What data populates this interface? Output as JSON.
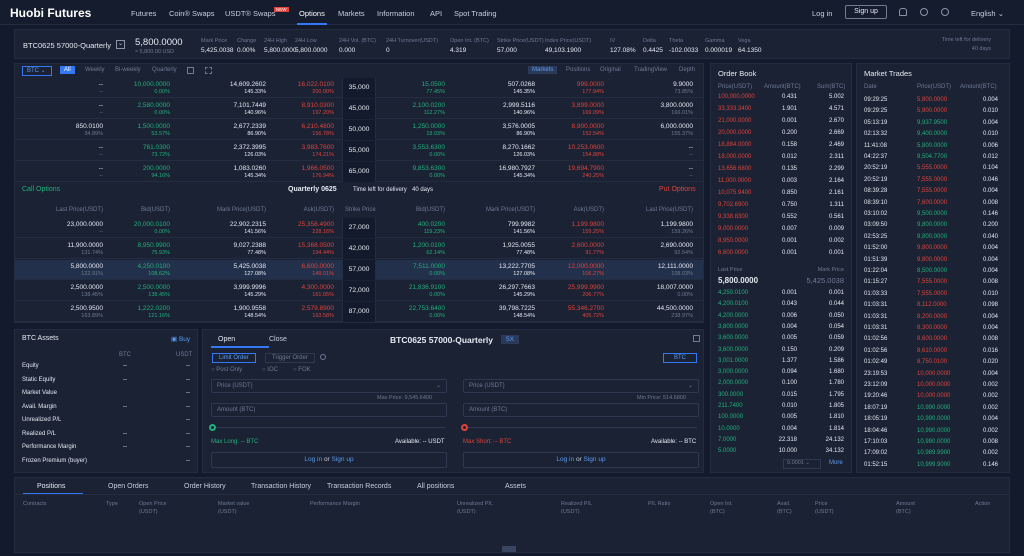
{
  "nav": {
    "logo": "Huobi Futures",
    "items": [
      "Futures",
      "Coin® Swaps",
      "USDT® Swaps",
      "Options",
      "Markets",
      "Information",
      "API",
      "Spot Trading"
    ],
    "badge": "NEW",
    "login": "Log in",
    "signup": "Sign up",
    "language": "English"
  },
  "ticker": {
    "symbol": "BTC0625 57000-Quarterly",
    "price": "5,800.0000",
    "price_usd": "≈ 5,800.00 USD",
    "stats": [
      {
        "l": "Mark Price",
        "v": "5,425.0038"
      },
      {
        "l": "Change",
        "v": "0.00%"
      },
      {
        "l": "24H High",
        "v": "5,800.0000"
      },
      {
        "l": "24H Low",
        "v": "5,800.0000"
      },
      {
        "l": "24H Vol. (BTC)",
        "v": "0.000"
      },
      {
        "l": "24H Turnover(USDT)",
        "v": "0"
      },
      {
        "l": "Open Int. (BTC)",
        "v": "4.319"
      },
      {
        "l": "Strike Price(USDT)",
        "v": "57,000"
      },
      {
        "l": "Index Price(USDT)",
        "v": "49,103.1900"
      },
      {
        "l": "IV",
        "v": "127.08%"
      },
      {
        "l": "Delta",
        "v": "0.4425"
      },
      {
        "l": "Theta",
        "v": "-102.0033"
      },
      {
        "l": "Gamma",
        "v": "0.000019"
      },
      {
        "l": "Vega",
        "v": "64.1350"
      }
    ],
    "time_left_label": "Time left for delivery",
    "time_left": "40 days"
  },
  "chain": {
    "coin": "BTC",
    "filters": [
      "All",
      "Weekly",
      "Bi-weekly",
      "Quarterly"
    ],
    "views": [
      "Markets",
      "Positions",
      "Original",
      "TradingView",
      "Depth"
    ],
    "call_label": "Call Options",
    "put_label": "Put Options",
    "expiry_title": "Quarterly 0625",
    "time_left_label": "Time left for delivery",
    "time_left": "40 days",
    "headers_call": [
      "Last Price(USDT)",
      "Bid(USDT)",
      "Mark Price(USDT)",
      "Ask(USDT)"
    ],
    "header_strike": "Strike Price",
    "headers_put": [
      "Bid(USDT)",
      "Mark Price(USDT)",
      "Ask(USDT)",
      "Last Price(USDT)"
    ],
    "top_rows": [
      {
        "strike": "35,000",
        "c": [
          [
            "--",
            "--"
          ],
          [
            "10,000.0000",
            "0.00%"
          ],
          [
            "14,609.2602",
            "145.33%"
          ],
          [
            "16,022.0100",
            "200.00%"
          ]
        ],
        "p": [
          [
            "15.0500",
            "77.45%"
          ],
          [
            "507.0268",
            "145.35%"
          ],
          [
            "999.0000",
            "177.94%"
          ],
          [
            "9.9000",
            "73.85%"
          ]
        ]
      },
      {
        "strike": "45,000",
        "c": [
          [
            "--",
            "--"
          ],
          [
            "2,580.0000",
            "0.00%"
          ],
          [
            "7,101.7449",
            "140.96%"
          ],
          [
            "8,910.0300",
            "197.20%"
          ]
        ],
        "p": [
          [
            "2,100.0200",
            "112.27%"
          ],
          [
            "2,999.5116",
            "140.96%"
          ],
          [
            "3,899.0000",
            "169.09%"
          ],
          [
            "3,800.0000",
            "166.01%"
          ]
        ]
      },
      {
        "strike": "50,000",
        "c": [
          [
            "850.0100",
            "34.89%"
          ],
          [
            "1,500.0000",
            "53.57%"
          ],
          [
            "2,677.2339",
            "86.90%"
          ],
          [
            "6,210.4800",
            "156.78%"
          ]
        ],
        "p": [
          [
            "1,250.0000",
            "19.03%"
          ],
          [
            "3,576.0005",
            "86.90%"
          ],
          [
            "8,900.0000",
            "152.54%"
          ],
          [
            "6,000.0000",
            "155.37%"
          ]
        ]
      },
      {
        "strike": "55,000",
        "c": [
          [
            "--",
            "--"
          ],
          [
            "761.0300",
            "73.72%"
          ],
          [
            "2,372.3995",
            "126.03%"
          ],
          [
            "3,983.7600",
            "174.21%"
          ]
        ],
        "p": [
          [
            "3,553.6300",
            "0.00%"
          ],
          [
            "8,270.1662",
            "126.03%"
          ],
          [
            "10,253.0600",
            "154.88%"
          ],
          [
            "--",
            "--"
          ]
        ]
      },
      {
        "strike": "65,000",
        "c": [
          [
            "--",
            "--"
          ],
          [
            "200.0000",
            "94.16%"
          ],
          [
            "1,083.0260",
            "145.34%"
          ],
          [
            "1,966.0500",
            "176.94%"
          ]
        ],
        "p": [
          [
            "9,853.6300",
            "0.00%"
          ],
          [
            "16,980.7927",
            "145.34%"
          ],
          [
            "19,694.7900",
            "240.25%"
          ],
          [
            "--",
            "--"
          ]
        ]
      }
    ],
    "rows": [
      {
        "strike": "27,000",
        "c": [
          [
            "23,000.0000",
            "--"
          ],
          [
            "20,000.0100",
            "0.00%"
          ],
          [
            "22,902.2315",
            "141.56%"
          ],
          [
            "25,358.4900",
            "228.16%"
          ]
        ],
        "p": [
          [
            "400.0200",
            "119.23%"
          ],
          [
            "799.9982",
            "141.56%"
          ],
          [
            "1,199.9800",
            "159.25%"
          ],
          [
            "1,199.9800",
            "159.26%"
          ]
        ]
      },
      {
        "strike": "42,000",
        "c": [
          [
            "11,900.0000",
            "131.74%"
          ],
          [
            "8,950.9900",
            "75.93%"
          ],
          [
            "9,027.2388",
            "77.48%"
          ],
          [
            "15,368.0500",
            "194.44%"
          ]
        ],
        "p": [
          [
            "1,200.0100",
            "62.14%"
          ],
          [
            "1,925.0055",
            "77.48%"
          ],
          [
            "2,600.0000",
            "91.77%"
          ],
          [
            "2,690.0000",
            "92.54%"
          ]
        ]
      },
      {
        "strike": "57,000",
        "c": [
          [
            "5,800.0000",
            "122.91%"
          ],
          [
            "4,250.0100",
            "108.62%"
          ],
          [
            "5,425.0038",
            "127.08%"
          ],
          [
            "6,600.0000",
            "149.01%"
          ]
        ],
        "p": [
          [
            "7,511.0000",
            "0.00%"
          ],
          [
            "13,222.7705",
            "127.08%"
          ],
          [
            "12,000.0000",
            "106.27%"
          ],
          [
            "12,111.0000",
            "108.03%"
          ]
        ]
      },
      {
        "strike": "72,000",
        "c": [
          [
            "2,500.0000",
            "138.45%"
          ],
          [
            "2,500.0000",
            "138.45%"
          ],
          [
            "3,999.9996",
            "145.29%"
          ],
          [
            "4,300.0000",
            "161.05%"
          ]
        ],
        "p": [
          [
            "21,836.9100",
            "0.00%"
          ],
          [
            "26,297.7663",
            "145.29%"
          ],
          [
            "25,999.9900",
            "206.77%"
          ],
          [
            "18,007.0000",
            "0.00%"
          ]
        ]
      },
      {
        "strike": "87,000",
        "c": [
          [
            "2,500.9500",
            "163.89%"
          ],
          [
            "1,222.0200",
            "121.16%"
          ],
          [
            "1,900.9558",
            "148.54%"
          ],
          [
            "2,579.8900",
            "163.58%"
          ]
        ],
        "p": [
          [
            "22,753.6400",
            "0.00%"
          ],
          [
            "39,798.7225",
            "148.54%"
          ],
          [
            "55,346.2700",
            "405.72%"
          ],
          [
            "44,500.0000",
            "238.97%"
          ]
        ]
      }
    ]
  },
  "orderbook": {
    "title": "Order Book",
    "headers": [
      "Price(USDT)",
      "Amount(BTC)",
      "Sum(BTC)"
    ],
    "asks": [
      [
        "100,000.0000",
        "0.431",
        "5.002"
      ],
      [
        "33,333.3400",
        "1.901",
        "4.571"
      ],
      [
        "21,000.0000",
        "0.001",
        "2.670"
      ],
      [
        "20,000.0000",
        "0.200",
        "2.669"
      ],
      [
        "18,884.0000",
        "0.158",
        "2.469"
      ],
      [
        "18,000.0000",
        "0.012",
        "2.311"
      ],
      [
        "13,656.6800",
        "0.135",
        "2.299"
      ],
      [
        "11,000.0000",
        "0.003",
        "2.164"
      ],
      [
        "10,075.9400",
        "0.850",
        "2.161"
      ],
      [
        "9,702.6900",
        "0.750",
        "1.311"
      ],
      [
        "9,338.8300",
        "0.552",
        "0.561"
      ],
      [
        "9,000.0000",
        "0.007",
        "0.009"
      ],
      [
        "8,950.0000",
        "0.001",
        "0.002"
      ],
      [
        "6,600.0000",
        "0.001",
        "0.001"
      ]
    ],
    "last_label": "Last Price",
    "last": "5,800.0000",
    "mark_label": "Mark Price",
    "mark": "5,425.0038",
    "bids": [
      [
        "4,250.0100",
        "0.001",
        "0.001"
      ],
      [
        "4,200.0100",
        "0.043",
        "0.044"
      ],
      [
        "4,200.0000",
        "0.006",
        "0.050"
      ],
      [
        "3,800.0000",
        "0.004",
        "0.054"
      ],
      [
        "3,600.0000",
        "0.005",
        "0.059"
      ],
      [
        "3,600.0000",
        "0.150",
        "0.209"
      ],
      [
        "3,001.0000",
        "1.377",
        "1.586"
      ],
      [
        "3,000.0000",
        "0.094",
        "1.680"
      ],
      [
        "2,000.0000",
        "0.100",
        "1.780"
      ],
      [
        "300.0000",
        "0.015",
        "1.795"
      ],
      [
        "211.7400",
        "0.010",
        "1.805"
      ],
      [
        "100.0000",
        "0.005",
        "1.810"
      ],
      [
        "10.0000",
        "0.004",
        "1.814"
      ],
      [
        "7.0000",
        "22.318",
        "24.132"
      ],
      [
        "5.0000",
        "10.000",
        "34.132"
      ]
    ],
    "precision": "0.0001",
    "more": "More"
  },
  "trades": {
    "title": "Market Trades",
    "headers": [
      "Date",
      "Price(USDT)",
      "Amount(BTC)"
    ],
    "rows": [
      [
        "09:29:25",
        "5,800.0000",
        "0.004"
      ],
      [
        "09:29:25",
        "5,900.0000",
        "0.010"
      ],
      [
        "05:13:19",
        "9,937.9500",
        "0.004"
      ],
      [
        "02:13:32",
        "9,400.0000",
        "0.010"
      ],
      [
        "11:41:08",
        "5,800.0000",
        "0.006"
      ],
      [
        "04:22:37",
        "9,504.7700",
        "0.012"
      ],
      [
        "20:52:19",
        "5,555.0000",
        "0.104"
      ],
      [
        "20:52:19",
        "7,555.0000",
        "0.046"
      ],
      [
        "08:39:28",
        "7,555.0000",
        "0.004"
      ],
      [
        "08:39:10",
        "7,600.0000",
        "0.008"
      ],
      [
        "03:10:02",
        "9,500.0000",
        "0.146"
      ],
      [
        "03:09:50",
        "9,800.0000",
        "0.200"
      ],
      [
        "02:53:25",
        "9,800.0000",
        "0.040"
      ],
      [
        "01:52:00",
        "9,800.0000",
        "0.004"
      ],
      [
        "01:51:39",
        "9,800.0000",
        "0.004"
      ],
      [
        "01:22:04",
        "8,500.0000",
        "0.004"
      ],
      [
        "01:15:27",
        "7,555.0000",
        "0.008"
      ],
      [
        "01:03:33",
        "7,555.0000",
        "0.010"
      ],
      [
        "01:03:31",
        "8,112.0000",
        "0.098"
      ],
      [
        "01:03:31",
        "8,200.0000",
        "0.004"
      ],
      [
        "01:03:31",
        "8,300.0000",
        "0.004"
      ],
      [
        "01:02:56",
        "8,600.0000",
        "0.008"
      ],
      [
        "01:02:56",
        "8,610.0000",
        "0.016"
      ],
      [
        "01:02:49",
        "8,750.0100",
        "0.020"
      ],
      [
        "23:19:53",
        "10,000.0000",
        "0.004"
      ],
      [
        "23:12:09",
        "10,000.0000",
        "0.002"
      ],
      [
        "19:20:46",
        "10,000.0000",
        "0.002"
      ],
      [
        "18:07:19",
        "10,990.0000",
        "0.002"
      ],
      [
        "18:05:19",
        "10,990.0000",
        "0.004"
      ],
      [
        "18:04:46",
        "10,990.0000",
        "0.002"
      ],
      [
        "17:10:03",
        "10,990.0000",
        "0.008"
      ],
      [
        "17:09:02",
        "10,989.9900",
        "0.002"
      ],
      [
        "01:52:15",
        "10,999.9000",
        "0.146"
      ]
    ]
  },
  "assets": {
    "title": "BTC Assets",
    "buy": "Buy",
    "col1": "BTC",
    "col2": "USDT",
    "rows": [
      [
        "Equity",
        "--",
        "--"
      ],
      [
        "Static Equity",
        "--",
        "--"
      ],
      [
        "Market Value",
        "",
        "--"
      ],
      [
        "Avail. Margin",
        "--",
        "--"
      ],
      [
        "Unrealized P/L",
        "",
        "--"
      ],
      [
        "Realized P/L",
        "--",
        "--"
      ],
      [
        "Performance Margin",
        "--",
        "--"
      ],
      [
        "Frozen Premium (buyer)",
        "",
        "--"
      ]
    ]
  },
  "order": {
    "tabs": [
      "Open",
      "Close"
    ],
    "symbol": "BTC0625 57000-Quarterly",
    "leverage": "5X",
    "types": [
      "Limit Order",
      "Trigger Order"
    ],
    "coin": "BTC",
    "opts": [
      "Post Only",
      "IOC",
      "FOK"
    ],
    "price_ph": "Price (USDT)",
    "amount_ph": "Amount (BTC)",
    "max_price": "Max Price: 9,545.6400",
    "min_price": "Min Price: 514.6800",
    "max_long": "Max Long: -- BTC",
    "avail_l": "Available: -- USDT",
    "max_short": "Max Short: -- BTC",
    "avail_s": "Available: -- BTC",
    "login": "Log in",
    "or": "or",
    "signup": "Sign up"
  },
  "bottom": {
    "tabs": [
      "Positions",
      "Open Orders",
      "Order History",
      "Transaction History",
      "Transaction Records",
      "All positions",
      "Assets"
    ],
    "cols": [
      "Contracts",
      "Type",
      "Open Price\n(USDT)",
      "Market value\n(USDT)",
      "Performance Margin",
      "Unrealized P/L\n(USDT)",
      "Realized P/L\n(USDT)",
      "P/L Ratio",
      "Open Int.\n(BTC)",
      "Avail.\n(BTC)",
      "Price\n(USDT)",
      "Amount\n(BTC)",
      "Action"
    ]
  }
}
